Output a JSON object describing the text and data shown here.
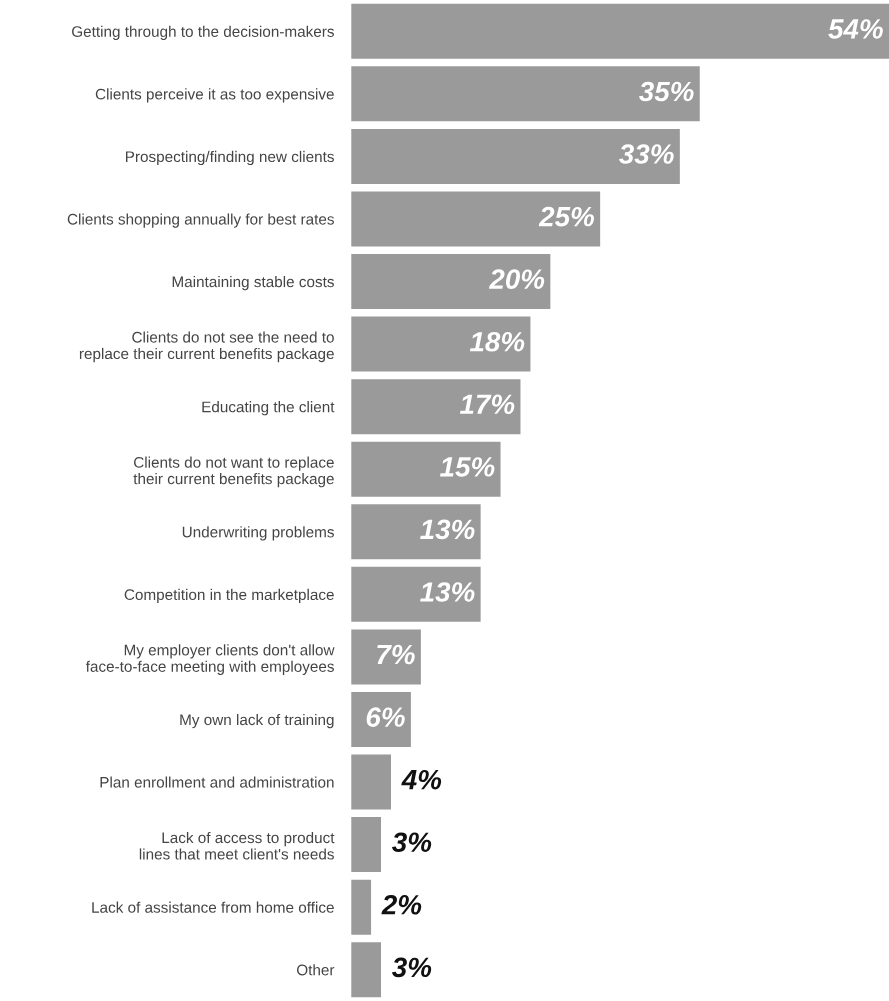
{
  "chart_data": {
    "type": "bar",
    "orientation": "horizontal",
    "color": "#9a9a9a",
    "categories": [
      "Getting through to the decision-makers",
      "Clients perceive it as too expensive",
      "Prospecting/finding new clients",
      "Clients shopping annually for best rates",
      "Maintaining stable costs",
      "Clients do not see the need to\nreplace their current benefits package",
      "Educating the client",
      "Clients do not want to replace\ntheir current benefits package",
      "Underwriting problems",
      "Competition in the marketplace",
      "My employer clients don't allow\nface-to-face meeting with employees",
      "My own lack of training",
      "Plan enrollment and administration",
      "Lack of access to product\nlines that meet client's needs",
      "Lack of assistance from home office",
      "Other"
    ],
    "values": [
      54,
      35,
      33,
      25,
      20,
      18,
      17,
      15,
      13,
      13,
      7,
      6,
      4,
      3,
      2,
      3
    ],
    "value_labels": [
      "54%",
      "35%",
      "33%",
      "25%",
      "20%",
      "18%",
      "17%",
      "15%",
      "13%",
      "13%",
      "7%",
      "6%",
      "4%",
      "3%",
      "2%",
      "3%"
    ],
    "xlim": [
      0,
      54
    ],
    "tick_labels": "y",
    "grid": false,
    "legend": false
  }
}
